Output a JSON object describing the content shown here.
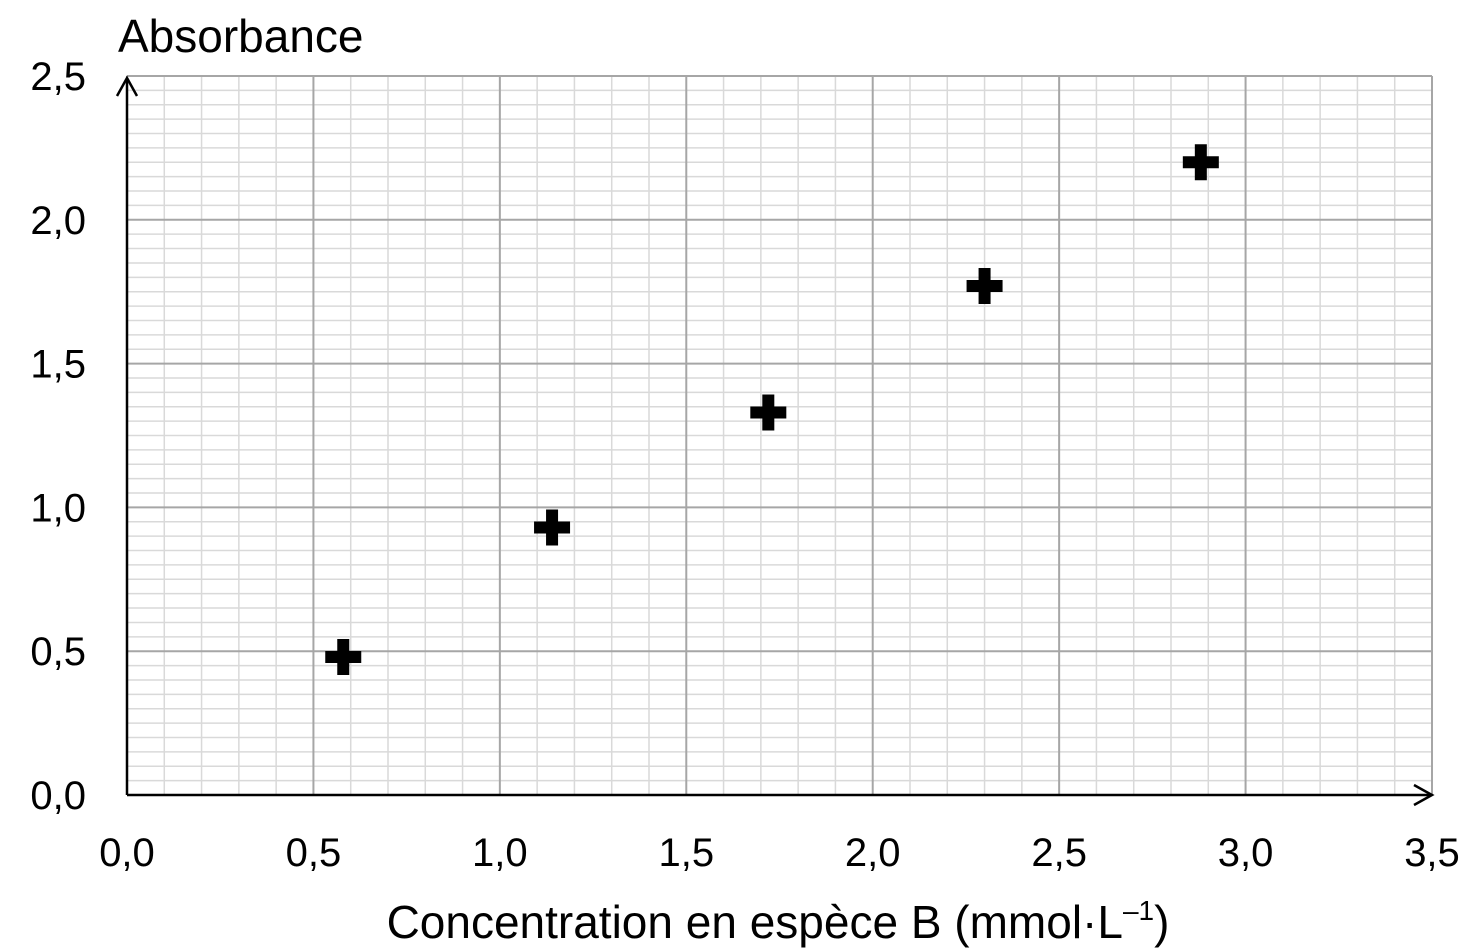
{
  "chart_data": {
    "type": "scatter",
    "ylabel": "Absorbance",
    "xlabel": "Concentration en espèce B (mmol·L",
    "xlabel_sup": "–1",
    "xlabel_end": ")",
    "xlim": [
      0,
      3.5
    ],
    "ylim": [
      0,
      2.5
    ],
    "major_step_x": 0.5,
    "major_step_y": 0.5,
    "minor_step_x": 0.1,
    "minor_step_y": 0.05,
    "grid": true,
    "x_ticks": [
      "0,0",
      "0,5",
      "1,0",
      "1,5",
      "2,0",
      "2,5",
      "3,0",
      "3,5"
    ],
    "y_ticks": [
      "0,0",
      "0,5",
      "1,0",
      "1,5",
      "2,0",
      "2,5"
    ],
    "marker": "plus",
    "marker_color": "#000000",
    "points": [
      {
        "x": 0.58,
        "y": 0.48
      },
      {
        "x": 1.14,
        "y": 0.93
      },
      {
        "x": 1.72,
        "y": 1.33
      },
      {
        "x": 2.3,
        "y": 1.77
      },
      {
        "x": 2.88,
        "y": 2.2
      }
    ]
  },
  "colors": {
    "major_grid": "#a6a6a6",
    "minor_grid": "#d9d9d9",
    "axis": "#000000"
  }
}
